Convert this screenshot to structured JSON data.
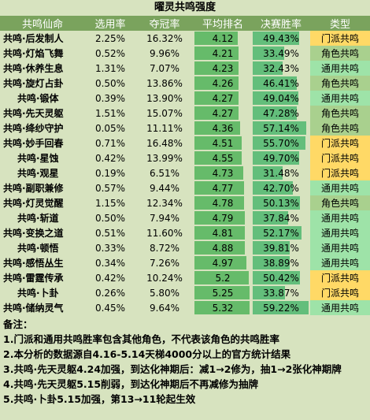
{
  "title": "曜灵共鸣强度",
  "headers": [
    "共鸣仙命",
    "选用率",
    "夺冠率",
    "平均排名",
    "决赛胜率",
    "类型"
  ],
  "rows": [
    {
      "name": "共鸣·后发制人",
      "indent": false,
      "pick": "2.25%",
      "champ": "16.32%",
      "rank": "4.12",
      "rank_value": 4.12,
      "win": "49.43%",
      "win_value": 49.43,
      "type": "门派共鸣"
    },
    {
      "name": "共鸣·灯焰飞舞",
      "indent": false,
      "pick": "0.52%",
      "champ": "9.96%",
      "rank": "4.21",
      "rank_value": 4.21,
      "win": "33.49%",
      "win_value": 33.49,
      "type": "角色共鸣"
    },
    {
      "name": "共鸣·休养生息",
      "indent": false,
      "pick": "1.31%",
      "champ": "7.07%",
      "rank": "4.23",
      "rank_value": 4.23,
      "win": "32.43%",
      "win_value": 32.43,
      "type": "通用共鸣"
    },
    {
      "name": "共鸣·旋灯占卦",
      "indent": false,
      "pick": "0.50%",
      "champ": "13.86%",
      "rank": "4.26",
      "rank_value": 4.26,
      "win": "46.41%",
      "win_value": 46.41,
      "type": "角色共鸣"
    },
    {
      "name": "共鸣·锻体",
      "indent": true,
      "pick": "0.39%",
      "champ": "13.90%",
      "rank": "4.27",
      "rank_value": 4.27,
      "win": "49.04%",
      "win_value": 49.04,
      "type": "通用共鸣"
    },
    {
      "name": "共鸣·先天灵躯",
      "indent": false,
      "pick": "1.51%",
      "champ": "15.07%",
      "rank": "4.27",
      "rank_value": 4.27,
      "win": "47.28%",
      "win_value": 47.28,
      "type": "角色共鸣"
    },
    {
      "name": "共鸣·绛纱守护",
      "indent": false,
      "pick": "0.05%",
      "champ": "11.11%",
      "rank": "4.36",
      "rank_value": 4.36,
      "win": "57.14%",
      "win_value": 57.14,
      "type": "角色共鸣"
    },
    {
      "name": "共鸣·妙手回春",
      "indent": false,
      "pick": "0.71%",
      "champ": "16.48%",
      "rank": "4.51",
      "rank_value": 4.51,
      "win": "55.70%",
      "win_value": 55.7,
      "type": "门派共鸣"
    },
    {
      "name": "共鸣·星蚀",
      "indent": true,
      "pick": "0.42%",
      "champ": "13.99%",
      "rank": "4.55",
      "rank_value": 4.55,
      "win": "49.70%",
      "win_value": 49.7,
      "type": "门派共鸣"
    },
    {
      "name": "共鸣·观星",
      "indent": true,
      "pick": "0.19%",
      "champ": "6.51%",
      "rank": "4.73",
      "rank_value": 4.73,
      "win": "31.48%",
      "win_value": 31.48,
      "type": "门派共鸣"
    },
    {
      "name": "共鸣·副职兼修",
      "indent": false,
      "pick": "0.57%",
      "champ": "9.44%",
      "rank": "4.77",
      "rank_value": 4.77,
      "win": "42.70%",
      "win_value": 42.7,
      "type": "通用共鸣"
    },
    {
      "name": "共鸣·灯灵觉醒",
      "indent": false,
      "pick": "1.15%",
      "champ": "12.34%",
      "rank": "4.78",
      "rank_value": 4.78,
      "win": "50.13%",
      "win_value": 50.13,
      "type": "角色共鸣"
    },
    {
      "name": "共鸣·斩道",
      "indent": true,
      "pick": "0.50%",
      "champ": "7.94%",
      "rank": "4.79",
      "rank_value": 4.79,
      "win": "37.84%",
      "win_value": 37.84,
      "type": "通用共鸣"
    },
    {
      "name": "共鸣·变换之道",
      "indent": false,
      "pick": "0.51%",
      "champ": "11.60%",
      "rank": "4.81",
      "rank_value": 4.81,
      "win": "52.17%",
      "win_value": 52.17,
      "type": "通用共鸣"
    },
    {
      "name": "共鸣·顿悟",
      "indent": true,
      "pick": "0.33%",
      "champ": "8.72%",
      "rank": "4.88",
      "rank_value": 4.88,
      "win": "39.81%",
      "win_value": 39.81,
      "type": "通用共鸣"
    },
    {
      "name": "共鸣·感悟丛生",
      "indent": false,
      "pick": "0.34%",
      "champ": "7.26%",
      "rank": "4.97",
      "rank_value": 4.97,
      "win": "38.89%",
      "win_value": 38.89,
      "type": "通用共鸣"
    },
    {
      "name": "共鸣·雷霆传承",
      "indent": false,
      "pick": "0.42%",
      "champ": "10.24%",
      "rank": "5.2",
      "rank_value": 5.2,
      "win": "50.42%",
      "win_value": 50.42,
      "type": "门派共鸣"
    },
    {
      "name": "共鸣·卜卦",
      "indent": true,
      "pick": "0.26%",
      "champ": "5.80%",
      "rank": "5.25",
      "rank_value": 5.25,
      "win": "33.87%",
      "win_value": 33.87,
      "type": "门派共鸣"
    },
    {
      "name": "共鸣·储纳灵气",
      "indent": false,
      "pick": "0.45%",
      "champ": "9.64%",
      "rank": "5.32",
      "rank_value": 5.32,
      "win": "59.22%",
      "win_value": 59.22,
      "type": "通用共鸣"
    }
  ],
  "type_colors": {
    "门派共鸣": "#ffd966",
    "角色共鸣": "#a9d08e",
    "通用共鸣": "#9ee3a8"
  },
  "notes": {
    "heading": "备注：",
    "lines": [
      "1.门派和通用共鸣胜率包含其他角色，不代表该角色的共鸣胜率",
      "2.本分析的数据源自4.16-5.14天梯4000分以上的官方统计结果",
      "3.共鸣·先天灵躯4.24加强，到达化神期后：减1→2修为，抽1→2张化神期牌",
      "4.共鸣·先天灵躯5.15削弱，到达化神期后不再减修为抽牌",
      "5.共鸣·卜卦5.15加强，第13→11轮起生效"
    ]
  }
}
